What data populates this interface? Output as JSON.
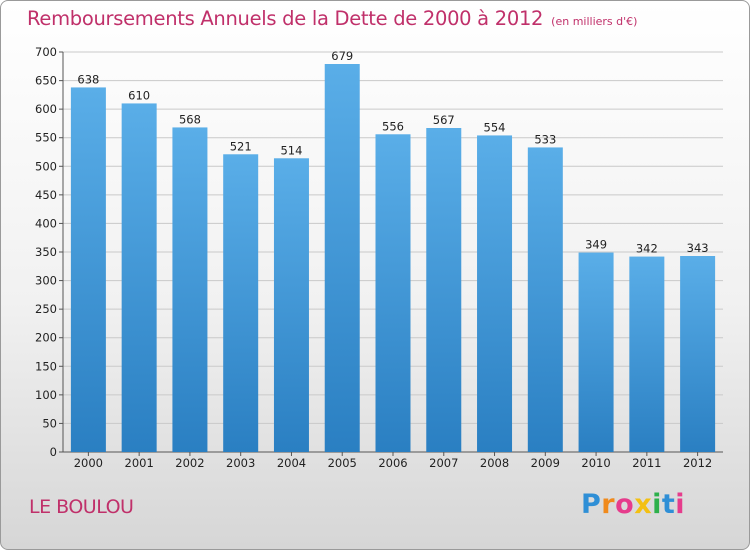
{
  "title": "Remboursements Annuels de la Dette de 2000 à 2012",
  "subtitle": "(en milliers d'€)",
  "commune": "LE BOULOU",
  "logo": {
    "letters": [
      "P",
      "r",
      "o",
      "x",
      "i",
      "t",
      "i"
    ],
    "colors": [
      "#2f8fd6",
      "#f08a1c",
      "#e63c8c",
      "#f3c012",
      "#2db04b",
      "#2f8fd6",
      "#e63c8c"
    ]
  },
  "chart_data": {
    "type": "bar",
    "title": "Remboursements Annuels de la Dette de 2000 à 2012",
    "subtitle": "(en milliers d'€)",
    "categories": [
      "2000",
      "2001",
      "2002",
      "2003",
      "2004",
      "2005",
      "2006",
      "2007",
      "2008",
      "2009",
      "2010",
      "2011",
      "2012"
    ],
    "values": [
      638,
      610,
      568,
      521,
      514,
      679,
      556,
      567,
      554,
      533,
      349,
      342,
      343
    ],
    "ylim": [
      0,
      700
    ],
    "yticks": [
      0,
      50,
      100,
      150,
      200,
      250,
      300,
      350,
      400,
      450,
      500,
      550,
      600,
      650,
      700
    ],
    "grid": true,
    "bar_color_top": "#5aaee8",
    "bar_color_bottom": "#2a7fc2"
  }
}
